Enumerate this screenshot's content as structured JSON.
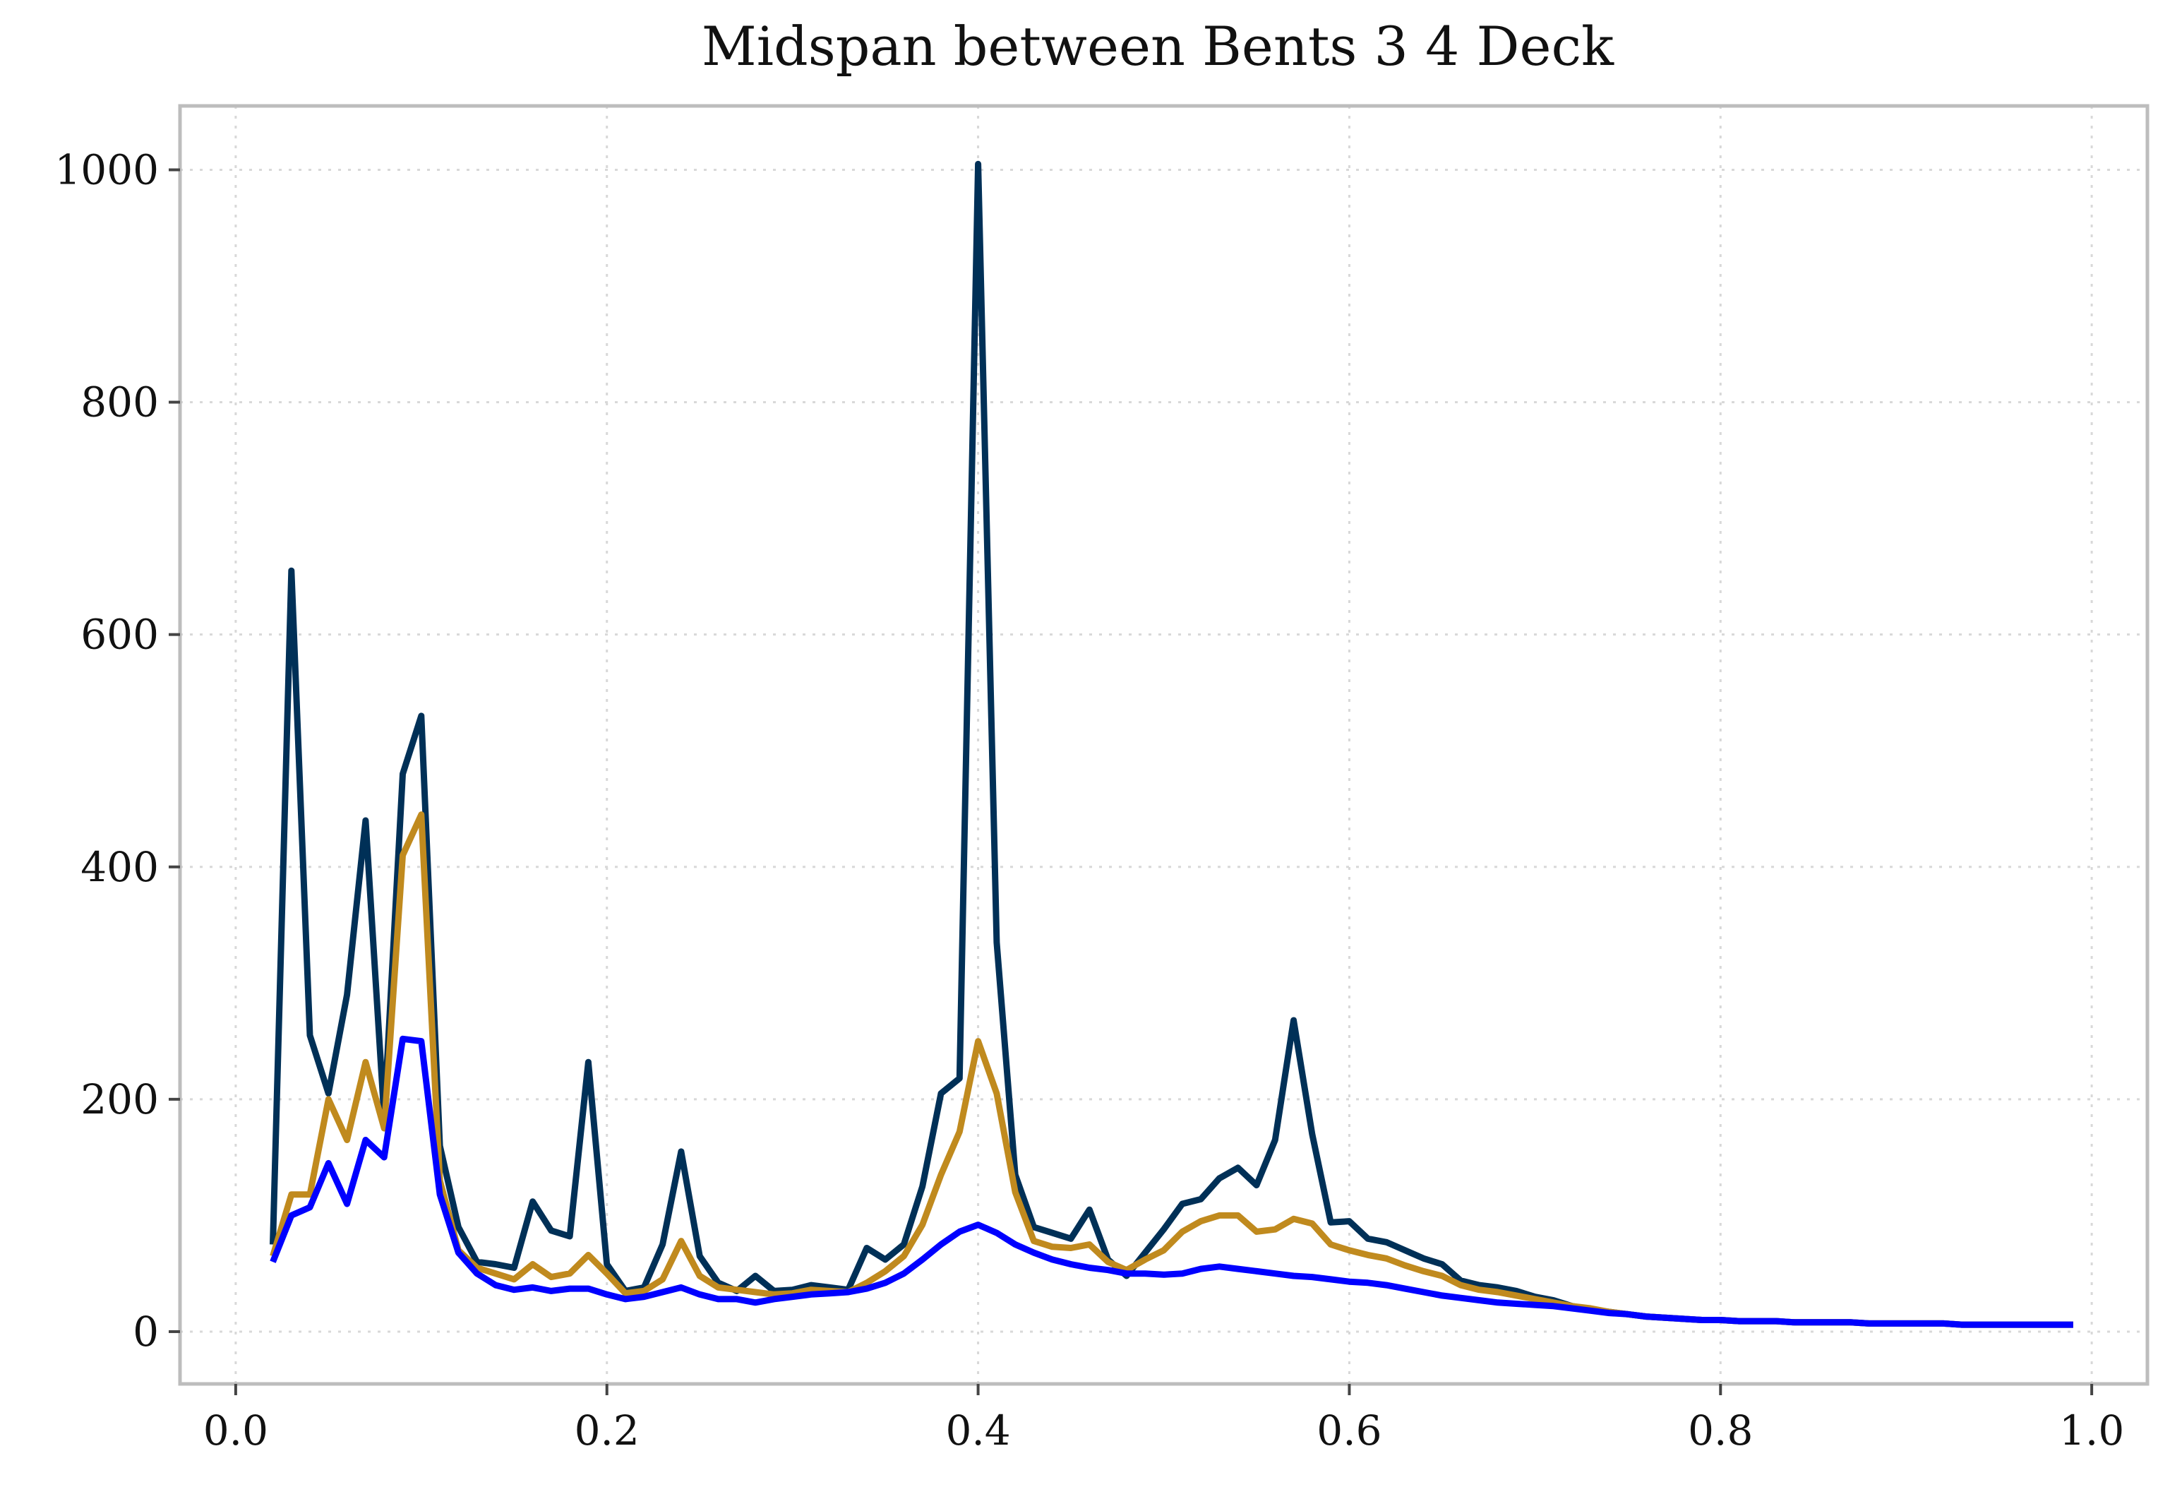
{
  "chart_data": {
    "type": "line",
    "title": "Midspan between Bents 3 4 Deck",
    "xlabel": "",
    "ylabel": "",
    "xlim": [
      -0.03,
      1.03
    ],
    "ylim": [
      -45,
      1055
    ],
    "x_ticks": [
      "0.0",
      "0.2",
      "0.4",
      "0.6",
      "0.8",
      "1.0"
    ],
    "y_ticks": [
      "0",
      "200",
      "400",
      "600",
      "800",
      "1000"
    ],
    "grid": true,
    "x": [
      0.02,
      0.03,
      0.04,
      0.05,
      0.06,
      0.07,
      0.08,
      0.09,
      0.1,
      0.11,
      0.12,
      0.13,
      0.14,
      0.15,
      0.16,
      0.17,
      0.18,
      0.19,
      0.2,
      0.21,
      0.22,
      0.23,
      0.24,
      0.25,
      0.26,
      0.27,
      0.28,
      0.29,
      0.3,
      0.31,
      0.32,
      0.33,
      0.34,
      0.35,
      0.36,
      0.37,
      0.38,
      0.39,
      0.4,
      0.41,
      0.42,
      0.43,
      0.44,
      0.45,
      0.46,
      0.47,
      0.48,
      0.49,
      0.5,
      0.51,
      0.52,
      0.53,
      0.54,
      0.55,
      0.56,
      0.57,
      0.58,
      0.59,
      0.6,
      0.61,
      0.62,
      0.63,
      0.64,
      0.65,
      0.66,
      0.67,
      0.68,
      0.69,
      0.7,
      0.71,
      0.72,
      0.73,
      0.74,
      0.75,
      0.76,
      0.77,
      0.78,
      0.79,
      0.8,
      0.81,
      0.82,
      0.83,
      0.84,
      0.85,
      0.86,
      0.87,
      0.88,
      0.89,
      0.9,
      0.91,
      0.92,
      0.93,
      0.94,
      0.95,
      0.96,
      0.97,
      0.98,
      0.99
    ],
    "series": [
      {
        "color": "#003057",
        "values": [
          75,
          655,
          255,
          205,
          290,
          440,
          185,
          480,
          530,
          160,
          90,
          60,
          58,
          55,
          112,
          87,
          82,
          232,
          58,
          35,
          38,
          75,
          155,
          65,
          42,
          35,
          48,
          35,
          36,
          40,
          38,
          36,
          72,
          62,
          75,
          125,
          205,
          218,
          1005,
          335,
          135,
          90,
          85,
          80,
          105,
          62,
          48,
          68,
          88,
          110,
          114,
          132,
          141,
          126,
          165,
          268,
          170,
          94,
          95,
          80,
          77,
          70,
          63,
          58,
          44,
          40,
          38,
          35,
          30,
          27,
          22,
          19,
          17,
          15,
          13,
          12,
          11,
          10,
          10,
          9,
          9,
          9,
          8,
          8,
          8,
          8,
          7,
          7,
          7,
          7,
          7,
          6,
          6,
          6,
          6,
          6,
          6,
          6
        ],
        "values_note_removed": true
      },
      {
        "color": "#C08A1E",
        "values": [
          65,
          118,
          118,
          200,
          165,
          232,
          175,
          410,
          445,
          130,
          70,
          55,
          50,
          45,
          58,
          47,
          50,
          66,
          50,
          33,
          35,
          45,
          78,
          48,
          38,
          36,
          34,
          32,
          33,
          36,
          35,
          34,
          42,
          52,
          65,
          92,
          135,
          172,
          250,
          205,
          120,
          78,
          73,
          72,
          75,
          60,
          53,
          62,
          70,
          86,
          95,
          100,
          100,
          86,
          88,
          97,
          93,
          75,
          70,
          66,
          63,
          57,
          52,
          48,
          40,
          36,
          34,
          31,
          28,
          25,
          22,
          20,
          17,
          15,
          13,
          12,
          11,
          10,
          10,
          9,
          9,
          9,
          8,
          8,
          8,
          8,
          7,
          7,
          7,
          7,
          7,
          6,
          6,
          6,
          6,
          6,
          6,
          6
        ]
      },
      {
        "color": "#0000FF",
        "values": [
          60,
          100,
          107,
          145,
          110,
          165,
          150,
          252,
          250,
          118,
          68,
          50,
          40,
          36,
          38,
          35,
          37,
          37,
          32,
          28,
          30,
          34,
          38,
          32,
          28,
          28,
          25,
          28,
          30,
          32,
          33,
          34,
          37,
          42,
          50,
          62,
          75,
          86,
          92,
          85,
          75,
          68,
          62,
          58,
          55,
          53,
          50,
          50,
          49,
          50,
          54,
          56,
          54,
          52,
          50,
          48,
          47,
          45,
          43,
          42,
          40,
          37,
          34,
          31,
          29,
          27,
          25,
          24,
          23,
          22,
          20,
          18,
          16,
          15,
          13,
          12,
          11,
          10,
          10,
          9,
          9,
          9,
          8,
          8,
          8,
          8,
          7,
          7,
          7,
          7,
          7,
          6,
          6,
          6,
          6,
          6,
          6,
          6
        ]
      }
    ]
  }
}
